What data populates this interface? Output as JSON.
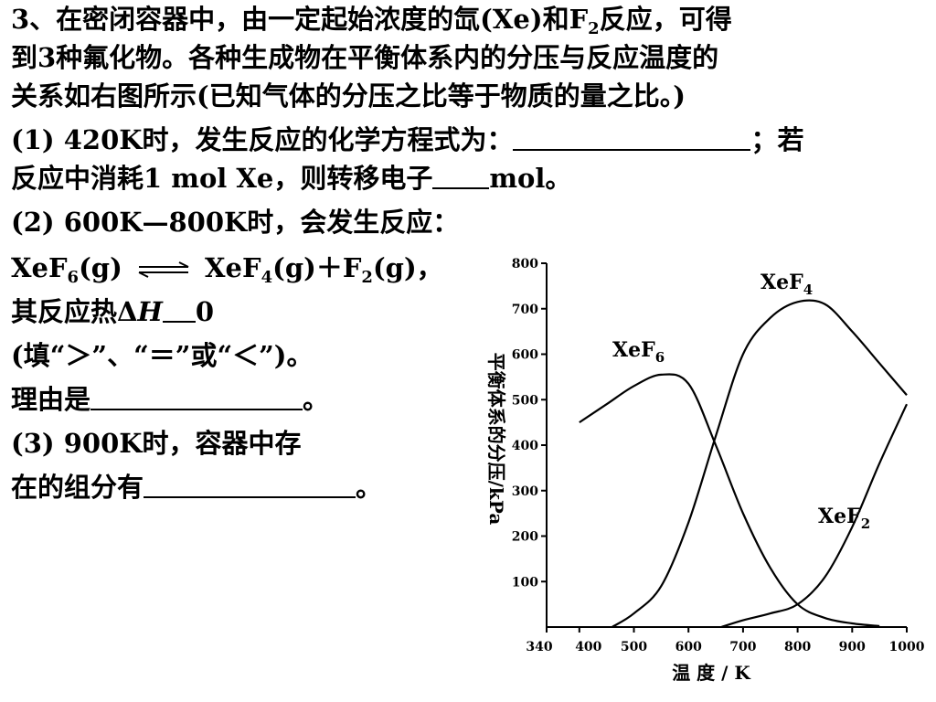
{
  "question": {
    "line1": "3、在密闭容器中，由一定起始浓度的氙(Xe)和F",
    "line1_sub": "2",
    "line1_end": "反应，可得",
    "line2": "到3种氟化物。各种生成物在平衡体系内的分压与反应温度的",
    "line3": "关系如右图所示(已知气体的分压之比等于物质的量之比。)",
    "p1_a": "(1) 420K时，发生反应的化学方程式为：",
    "p1_b": "；若",
    "p1_c": "反应中消耗1 mol Xe，则转移电子",
    "p1_d": "mol。",
    "p2_a": "(2) 600K—800K时，会发生反应：",
    "eq_left": "XeF",
    "eq_left_sub": "6",
    "eq_left_end": "(g)",
    "eq_right": "XeF",
    "eq_right_sub": "4",
    "eq_right_mid": "(g)＋F",
    "eq_right_sub2": "2",
    "eq_right_end": "(g)，",
    "p2_heat_a": "其反应热Δ",
    "p2_heat_H": "H",
    "p2_heat_b": "0",
    "p2_fill": "(填“＞”、“＝”或“＜”)。",
    "p2_reason": "理由是",
    "p2_reason_end": "。",
    "p3_a": "(3) 900K时，容器中存",
    "p3_b": "在的组分有",
    "p3_end": "。"
  },
  "chart_data": {
    "type": "line",
    "ylabel": "平衡体系的分压/kPa",
    "xlabel": "温 度 / K",
    "xlim": [
      340,
      1000
    ],
    "ylim": [
      0,
      800
    ],
    "x_ticks": [
      "340",
      "400",
      "500",
      "600",
      "700",
      "800",
      "900",
      "1000"
    ],
    "y_ticks": [
      "100",
      "200",
      "300",
      "400",
      "500",
      "600",
      "700",
      "800"
    ],
    "series": [
      {
        "name": "XeF6",
        "points": [
          [
            400,
            450
          ],
          [
            450,
            490
          ],
          [
            500,
            530
          ],
          [
            550,
            555
          ],
          [
            600,
            535
          ],
          [
            650,
            400
          ],
          [
            700,
            250
          ],
          [
            750,
            130
          ],
          [
            800,
            50
          ],
          [
            850,
            20
          ],
          [
            900,
            8
          ],
          [
            950,
            2
          ]
        ]
      },
      {
        "name": "XeF4",
        "points": [
          [
            460,
            0
          ],
          [
            500,
            30
          ],
          [
            550,
            90
          ],
          [
            600,
            230
          ],
          [
            650,
            420
          ],
          [
            700,
            600
          ],
          [
            750,
            680
          ],
          [
            800,
            715
          ],
          [
            850,
            710
          ],
          [
            900,
            650
          ],
          [
            950,
            580
          ],
          [
            1000,
            510
          ]
        ]
      },
      {
        "name": "XeF2",
        "points": [
          [
            660,
            0
          ],
          [
            700,
            15
          ],
          [
            750,
            30
          ],
          [
            800,
            50
          ],
          [
            850,
            110
          ],
          [
            900,
            220
          ],
          [
            950,
            360
          ],
          [
            1000,
            490
          ]
        ]
      }
    ],
    "series_labels": [
      "XeF",
      "6",
      "XeF",
      "4",
      "XeF",
      "2"
    ]
  }
}
